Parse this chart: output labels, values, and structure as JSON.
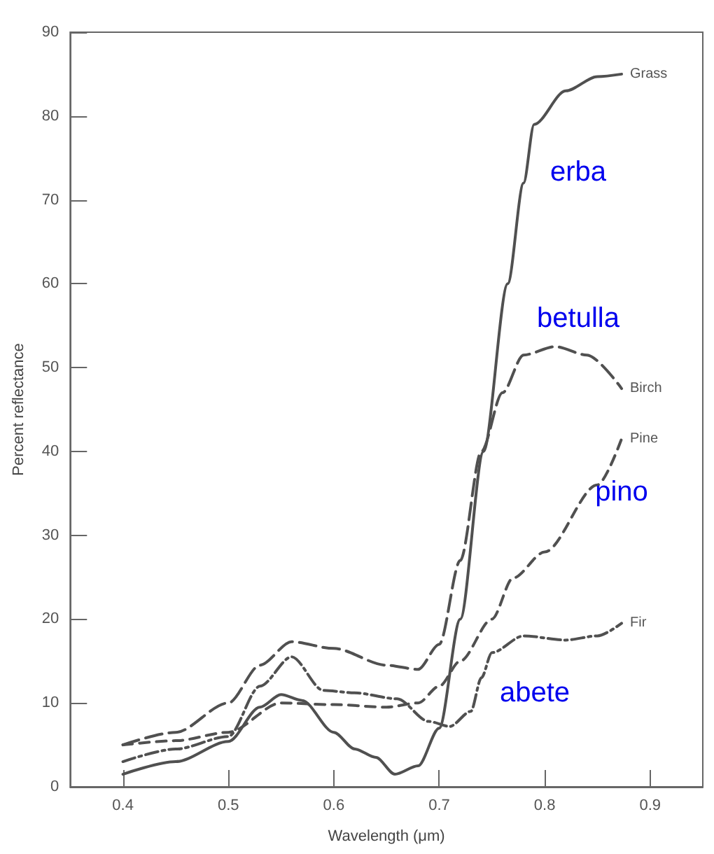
{
  "chart_data": {
    "type": "line",
    "xlabel": "Wavelength (μm)",
    "ylabel": "Percent reflectance",
    "xlim": [
      0.35,
      0.95
    ],
    "xticks": [
      0.4,
      0.5,
      0.6,
      0.7,
      0.8,
      0.9
    ],
    "ylim": [
      0,
      90
    ],
    "yticks": [
      0,
      10,
      20,
      30,
      40,
      50,
      60,
      70,
      80,
      90
    ],
    "grid": false,
    "legend": false,
    "marker": "none",
    "series": [
      {
        "name": "Grass",
        "color": "#505050",
        "line_style": "solid",
        "x": [
          0.4,
          0.45,
          0.5,
          0.53,
          0.55,
          0.57,
          0.6,
          0.62,
          0.64,
          0.658,
          0.68,
          0.7,
          0.72,
          0.742,
          0.765,
          0.78,
          0.79,
          0.82,
          0.85,
          0.873
        ],
        "values": [
          1.5,
          3,
          5.4,
          9.5,
          11,
          10.3,
          6.5,
          4.5,
          3.5,
          1.5,
          2.5,
          7,
          20,
          40,
          60,
          72,
          79,
          83,
          84.7,
          85
        ]
      },
      {
        "name": "Birch",
        "color": "#505050",
        "line_style": "dashed",
        "x": [
          0.4,
          0.45,
          0.5,
          0.53,
          0.56,
          0.6,
          0.65,
          0.68,
          0.7,
          0.72,
          0.74,
          0.76,
          0.78,
          0.81,
          0.84,
          0.873
        ],
        "values": [
          5,
          6.5,
          10,
          14.5,
          17.3,
          16.5,
          14.5,
          14,
          17,
          27,
          40,
          47,
          51.5,
          52.5,
          51.5,
          47.5
        ]
      },
      {
        "name": "Pine",
        "color": "#505050",
        "line_style": "dashed",
        "x": [
          0.4,
          0.45,
          0.5,
          0.55,
          0.6,
          0.65,
          0.68,
          0.7,
          0.72,
          0.75,
          0.77,
          0.8,
          0.85,
          0.873
        ],
        "values": [
          5,
          5.5,
          6.5,
          10,
          9.8,
          9.5,
          10,
          12,
          15,
          20,
          24.9,
          28,
          36,
          41.5
        ]
      },
      {
        "name": "Fir",
        "color": "#505050",
        "line_style": "dashed",
        "x": [
          0.4,
          0.45,
          0.5,
          0.53,
          0.56,
          0.59,
          0.62,
          0.66,
          0.69,
          0.71,
          0.73,
          0.74,
          0.75,
          0.78,
          0.82,
          0.85,
          0.873
        ],
        "values": [
          3,
          4.5,
          6,
          12,
          15.5,
          11.5,
          11.2,
          10.5,
          7.8,
          7.2,
          9,
          13,
          16,
          18,
          17.5,
          18,
          19.5
        ]
      }
    ],
    "annotations": [
      "erba",
      "betulla",
      "pino",
      "abete"
    ]
  }
}
